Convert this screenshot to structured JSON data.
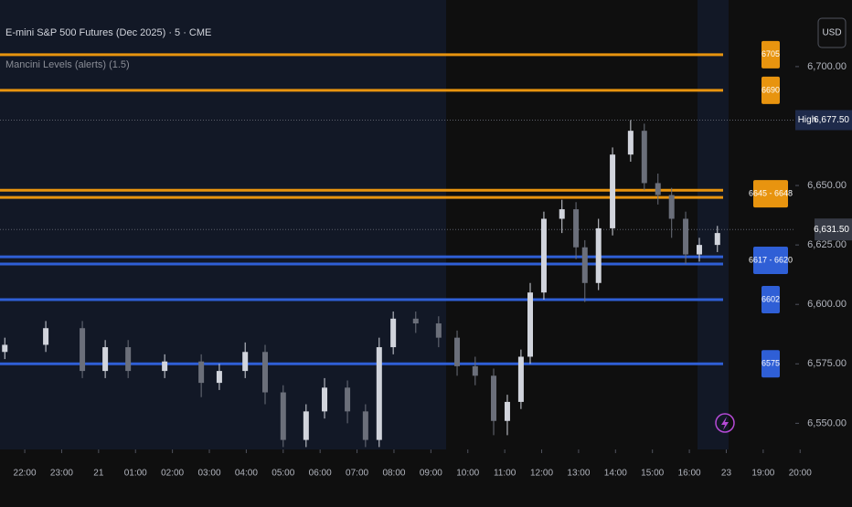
{
  "chart_data": {
    "type": "candlestick",
    "title": "E-mini S&P 500 Futures (Dec 2025) · 5 · CME",
    "subtitle": "Mancini Levels (alerts) (1.5)",
    "currency": "USD",
    "x": [
      -0.54,
      0.57,
      1.56,
      2.18,
      2.8,
      3.79,
      4.78,
      5.27,
      5.97,
      6.51,
      7.0,
      7.62,
      8.12,
      8.74,
      9.23,
      9.6,
      9.98,
      10.59,
      11.21,
      11.71,
      12.2,
      12.7,
      13.07,
      13.44,
      13.69,
      14.06,
      14.55,
      14.93,
      15.17,
      15.54,
      15.92,
      16.41,
      16.78,
      17.15,
      17.52,
      17.9,
      18.27,
      18.76
    ],
    "open": [
      6580,
      6583,
      6590,
      6572,
      6582,
      6572,
      6576,
      6567,
      6572,
      6580,
      6563,
      6543,
      6555,
      6565,
      6555,
      6543,
      6582,
      6594,
      6592,
      6586,
      6574,
      6570,
      6551,
      6559,
      6578,
      6605,
      6636,
      6640,
      6624,
      6609,
      6632,
      6663,
      6673,
      6651,
      6646,
      6636,
      6621,
      6625
    ],
    "high": [
      6586,
      6593,
      6593,
      6585,
      6585,
      6579,
      6579,
      6575,
      6584,
      6583,
      6566,
      6558,
      6569,
      6568,
      6558,
      6586,
      6597,
      6597,
      6595,
      6589,
      6578,
      6573,
      6562,
      6581,
      6609,
      6639,
      6644,
      6643,
      6627,
      6636,
      6666,
      6677.5,
      6676,
      6655,
      6649,
      6639,
      6628,
      6633
    ],
    "low": [
      6577,
      6580,
      6569,
      6569,
      6569,
      6569,
      6561,
      6564,
      6569,
      6558,
      6540,
      6540,
      6552,
      6550,
      6540,
      6540,
      6579,
      6588,
      6582,
      6570,
      6566,
      6545,
      6545,
      6556,
      6575,
      6602,
      6630,
      6619,
      6601,
      6606,
      6629,
      6660,
      6648,
      6642,
      6628,
      6617,
      6618,
      6622
    ],
    "close": [
      6583,
      6590,
      6572,
      6582,
      6572,
      6576,
      6567,
      6572,
      6580,
      6563,
      6543,
      6555,
      6565,
      6555,
      6543,
      6582,
      6594,
      6592,
      6586,
      6574,
      6570,
      6551,
      6559,
      6578,
      6605,
      6636,
      6640,
      6624,
      6609,
      6632,
      6663,
      6673,
      6651,
      6646,
      6636,
      6621,
      6625,
      6630
    ],
    "up_color": "#d1d4dc",
    "down_color": "#6b6f7a",
    "xlim": [
      -0.67,
      20.87
    ],
    "xticks": [
      {
        "value": 0,
        "label": "22:00"
      },
      {
        "value": 1,
        "label": "23:00"
      },
      {
        "value": 2,
        "label": "21"
      },
      {
        "value": 3,
        "label": "01:00"
      },
      {
        "value": 4,
        "label": "02:00"
      },
      {
        "value": 5,
        "label": "03:00"
      },
      {
        "value": 6,
        "label": "04:00"
      },
      {
        "value": 7,
        "label": "05:00"
      },
      {
        "value": 8,
        "label": "06:00"
      },
      {
        "value": 9,
        "label": "07:00"
      },
      {
        "value": 10,
        "label": "08:00"
      },
      {
        "value": 11,
        "label": "09:00"
      },
      {
        "value": 12,
        "label": "10:00"
      },
      {
        "value": 13,
        "label": "11:00"
      },
      {
        "value": 14,
        "label": "12:00"
      },
      {
        "value": 15,
        "label": "13:00"
      },
      {
        "value": 16,
        "label": "14:00"
      },
      {
        "value": 17,
        "label": "15:00"
      },
      {
        "value": 18,
        "label": "16:00"
      },
      {
        "value": 19,
        "label": "23"
      },
      {
        "value": 20,
        "label": "19:00"
      },
      {
        "value": 21,
        "label": "20:00"
      }
    ],
    "ylim": [
      6539,
      6728
    ],
    "yticks": [
      {
        "value": 6550,
        "label": "6,550.00"
      },
      {
        "value": 6575,
        "label": "6,575.00"
      },
      {
        "value": 6600,
        "label": "6,600.00"
      },
      {
        "value": 6625,
        "label": "6,625.00"
      },
      {
        "value": 6650,
        "label": "6,650.00"
      },
      {
        "value": 6700,
        "label": "6,700.00"
      }
    ],
    "levels": [
      {
        "label": "6705",
        "values": [
          6705
        ],
        "color": "#e8940f"
      },
      {
        "label": "6690",
        "values": [
          6690
        ],
        "color": "#e8940f"
      },
      {
        "label": "6645 - 6648",
        "values": [
          6645,
          6648
        ],
        "color": "#e8940f"
      },
      {
        "label": "6617 - 6620",
        "values": [
          6617,
          6620
        ],
        "color": "#2f5fd6"
      },
      {
        "label": "6602",
        "values": [
          6602
        ],
        "color": "#2f5fd6"
      },
      {
        "label": "6575",
        "values": [
          6575
        ],
        "color": "#2f5fd6"
      }
    ],
    "high_marker": {
      "name": "High",
      "value": 6677.5,
      "label": "6,677.50"
    },
    "last_price": {
      "value": 6631.5,
      "label": "6,631.50"
    }
  }
}
